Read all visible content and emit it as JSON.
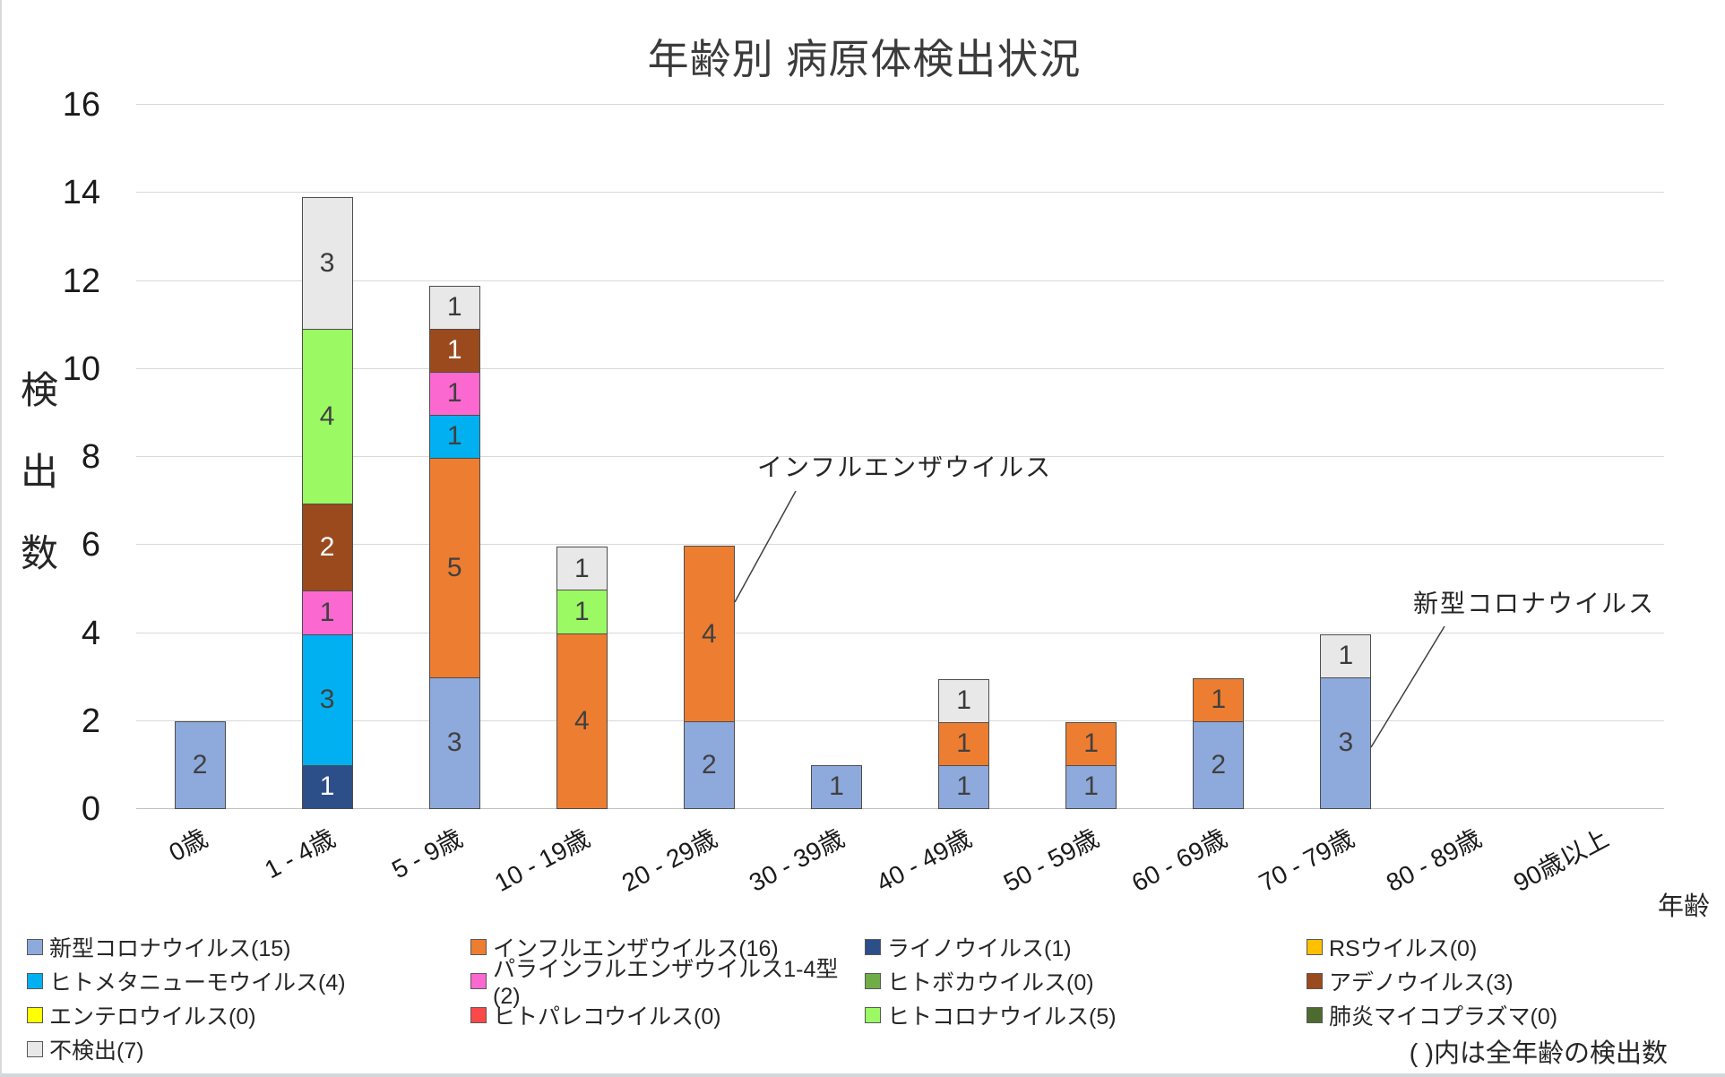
{
  "title": "年齢別 病原体検出状況",
  "y_axis": {
    "title_chars": [
      "検",
      "出",
      "数"
    ],
    "ticks": [
      0,
      2,
      4,
      6,
      8,
      10,
      12,
      14,
      16
    ]
  },
  "x_axis": {
    "title": "年齢"
  },
  "annotations": [
    {
      "text": "インフルエンザウイルス",
      "target_category": "20 - 29歳",
      "target_series": "インフルエンザウイルス"
    },
    {
      "text": "新型コロナウイルス",
      "target_category": "70 - 79歳",
      "target_series": "新型コロナウイルス"
    }
  ],
  "chart_data": {
    "type": "bar",
    "stacked": true,
    "title": "年齢別 病原体検出状況",
    "xlabel": "年齢",
    "ylabel": "検出数",
    "ylim": [
      0,
      16
    ],
    "ytick_step": 2,
    "grid": true,
    "legend_position": "bottom",
    "legend_note": "( )内は全年齢の検出数",
    "categories": [
      "0歳",
      "1 - 4歳",
      "5 - 9歳",
      "10 - 19歳",
      "20 - 29歳",
      "30 - 39歳",
      "40 - 49歳",
      "50 - 59歳",
      "60 - 69歳",
      "70 - 79歳",
      "80 - 89歳",
      "90歳以上"
    ],
    "series": [
      {
        "name": "新型コロナウイルス",
        "total": 15,
        "legend_label": "新型コロナウイルス(15)",
        "color": "#8EA9DB",
        "label_color": "#404040",
        "values": [
          2,
          0,
          3,
          0,
          2,
          1,
          1,
          1,
          2,
          3,
          0,
          0
        ]
      },
      {
        "name": "インフルエンザウイルス",
        "total": 16,
        "legend_label": "インフルエンザウイルス(16)",
        "color": "#ED7D31",
        "label_color": "#404040",
        "values": [
          0,
          0,
          5,
          4,
          4,
          0,
          1,
          1,
          1,
          0,
          0,
          0
        ]
      },
      {
        "name": "ライノウイルス",
        "total": 1,
        "legend_label": "ライノウイルス(1)",
        "color": "#2C4E89",
        "label_color": "#FFFFFF",
        "values": [
          0,
          1,
          0,
          0,
          0,
          0,
          0,
          0,
          0,
          0,
          0,
          0
        ]
      },
      {
        "name": "RSウイルス",
        "total": 0,
        "legend_label": "RSウイルス(0)",
        "color": "#FFC000",
        "label_color": "#404040",
        "values": [
          0,
          0,
          0,
          0,
          0,
          0,
          0,
          0,
          0,
          0,
          0,
          0
        ]
      },
      {
        "name": "ヒトメタニューモウイルス",
        "total": 4,
        "legend_label": "ヒトメタニューモウイルス(4)",
        "color": "#00B0F0",
        "label_color": "#404040",
        "values": [
          0,
          3,
          1,
          0,
          0,
          0,
          0,
          0,
          0,
          0,
          0,
          0
        ]
      },
      {
        "name": "パラインフルエンザウイルス1-4型",
        "total": 2,
        "legend_label": "パラインフルエンザウイルス1-4型(2)",
        "color": "#FB68D0",
        "label_color": "#404040",
        "values": [
          0,
          1,
          1,
          0,
          0,
          0,
          0,
          0,
          0,
          0,
          0,
          0
        ]
      },
      {
        "name": "ヒトボカウイルス",
        "total": 0,
        "legend_label": "ヒトボカウイルス(0)",
        "color": "#70AD47",
        "label_color": "#404040",
        "values": [
          0,
          0,
          0,
          0,
          0,
          0,
          0,
          0,
          0,
          0,
          0,
          0
        ]
      },
      {
        "name": "アデノウイルス",
        "total": 3,
        "legend_label": "アデノウイルス(3)",
        "color": "#9A4A1D",
        "label_color": "#FFFFFF",
        "values": [
          0,
          2,
          1,
          0,
          0,
          0,
          0,
          0,
          0,
          0,
          0,
          0
        ]
      },
      {
        "name": "エンテロウイルス",
        "total": 0,
        "legend_label": "エンテロウイルス(0)",
        "color": "#FFFF00",
        "label_color": "#404040",
        "values": [
          0,
          0,
          0,
          0,
          0,
          0,
          0,
          0,
          0,
          0,
          0,
          0
        ]
      },
      {
        "name": "ヒトパレコウイルス",
        "total": 0,
        "legend_label": "ヒトパレコウイルス(0)",
        "color": "#FB4848",
        "label_color": "#404040",
        "values": [
          0,
          0,
          0,
          0,
          0,
          0,
          0,
          0,
          0,
          0,
          0,
          0
        ]
      },
      {
        "name": "ヒトコロナウイルス",
        "total": 5,
        "legend_label": "ヒトコロナウイルス(5)",
        "color": "#9BFA64",
        "label_color": "#404040",
        "values": [
          0,
          4,
          0,
          1,
          0,
          0,
          0,
          0,
          0,
          0,
          0,
          0
        ]
      },
      {
        "name": "肺炎マイコプラズマ",
        "total": 0,
        "legend_label": "肺炎マイコプラズマ(0)",
        "color": "#4D6B2F",
        "label_color": "#404040",
        "values": [
          0,
          0,
          0,
          0,
          0,
          0,
          0,
          0,
          0,
          0,
          0,
          0
        ]
      },
      {
        "name": "不検出",
        "total": 7,
        "legend_label": "不検出(7)",
        "color": "#E9E8E8",
        "label_color": "#3a3a3a",
        "values": [
          0,
          3,
          1,
          1,
          0,
          0,
          1,
          0,
          0,
          1,
          0,
          0
        ]
      }
    ]
  }
}
